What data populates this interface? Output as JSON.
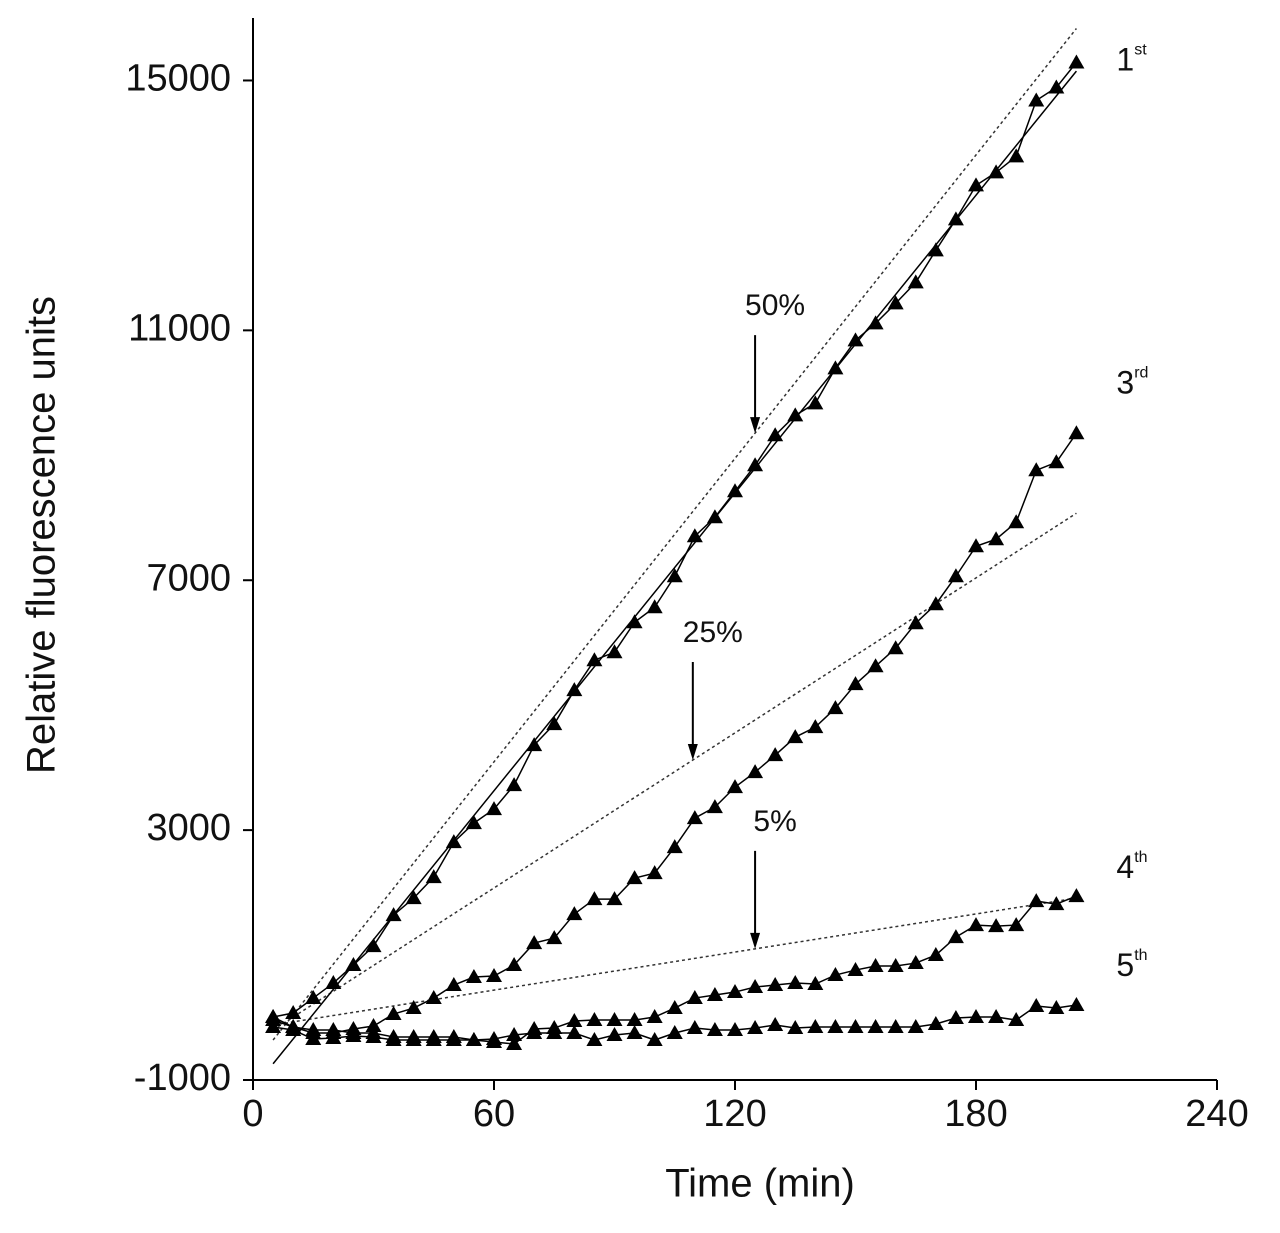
{
  "chart_data": {
    "type": "line",
    "x_label": "Time (min)",
    "y_label": "Relative fluorescence units",
    "xlim": [
      0,
      240
    ],
    "xticks": [
      0,
      60,
      120,
      180,
      240
    ],
    "ylim": [
      -1000,
      16000
    ],
    "yticks": [
      -1000,
      3000,
      7000,
      11000,
      15000
    ],
    "x": [
      5,
      10,
      15,
      20,
      25,
      30,
      35,
      40,
      45,
      50,
      55,
      60,
      65,
      70,
      75,
      80,
      85,
      90,
      95,
      100,
      105,
      110,
      115,
      120,
      125,
      130,
      135,
      140,
      145,
      150,
      155,
      160,
      165,
      170,
      175,
      180,
      185,
      190,
      195,
      200,
      205
    ],
    "series": [
      {
        "name": "1st",
        "color": "#000000",
        "values": [
          8,
          72,
          312,
          552,
          840,
          1144,
          1640,
          1912,
          2248,
          2808,
          3112,
          3336,
          3720,
          4360,
          4696,
          5240,
          5720,
          5848,
          6328,
          6568,
          7064,
          7704,
          8008,
          8424,
          8840,
          9320,
          9640,
          9832,
          10392,
          10840,
          11112,
          11432,
          11768,
          12280,
          12776,
          13320,
          13528,
          13784,
          14680,
          14888,
          15288
        ]
      },
      {
        "name": "3rd",
        "color": "#000000",
        "values": [
          -40,
          -152,
          -248,
          -248,
          -184,
          -136,
          56,
          152,
          312,
          520,
          648,
          664,
          840,
          1192,
          1272,
          1656,
          1896,
          1896,
          2232,
          2312,
          2728,
          3192,
          3368,
          3688,
          3928,
          4200,
          4488,
          4648,
          4952,
          5336,
          5624,
          5912,
          6312,
          6616,
          7064,
          7544,
          7656,
          7928,
          8760,
          8888,
          9352
        ]
      },
      {
        "name": "4th",
        "color": "#000000",
        "values": [
          -152,
          -200,
          -344,
          -328,
          -296,
          -312,
          -360,
          -360,
          -360,
          -360,
          -360,
          -392,
          -424,
          -184,
          -168,
          -56,
          -40,
          -40,
          -40,
          8,
          152,
          312,
          360,
          408,
          488,
          520,
          552,
          536,
          680,
          760,
          824,
          824,
          872,
          1000,
          1288,
          1480,
          1464,
          1480,
          1864,
          1816,
          1944
        ]
      },
      {
        "name": "5th",
        "color": "#000000",
        "values": [
          8,
          -152,
          -200,
          -200,
          -248,
          -248,
          -312,
          -312,
          -312,
          -312,
          -360,
          -344,
          -280,
          -248,
          -248,
          -248,
          -360,
          -280,
          -248,
          -360,
          -248,
          -168,
          -200,
          -200,
          -168,
          -120,
          -168,
          -152,
          -152,
          -152,
          -152,
          -152,
          -152,
          -104,
          -8,
          8,
          8,
          -40,
          184,
          152,
          200
        ]
      }
    ],
    "fit": {
      "x": [
        5,
        205
      ],
      "values": [
        -740,
        15150
      ]
    },
    "reference_lines": [
      {
        "name": "50%",
        "x": [
          5,
          205
        ],
        "values": [
          -360,
          15832
        ]
      },
      {
        "name": "25%",
        "x": [
          5,
          205
        ],
        "values": [
          -200,
          8072
        ]
      },
      {
        "name": "5%",
        "x": [
          5,
          205
        ],
        "values": [
          -120,
          1912
        ]
      }
    ]
  }
}
